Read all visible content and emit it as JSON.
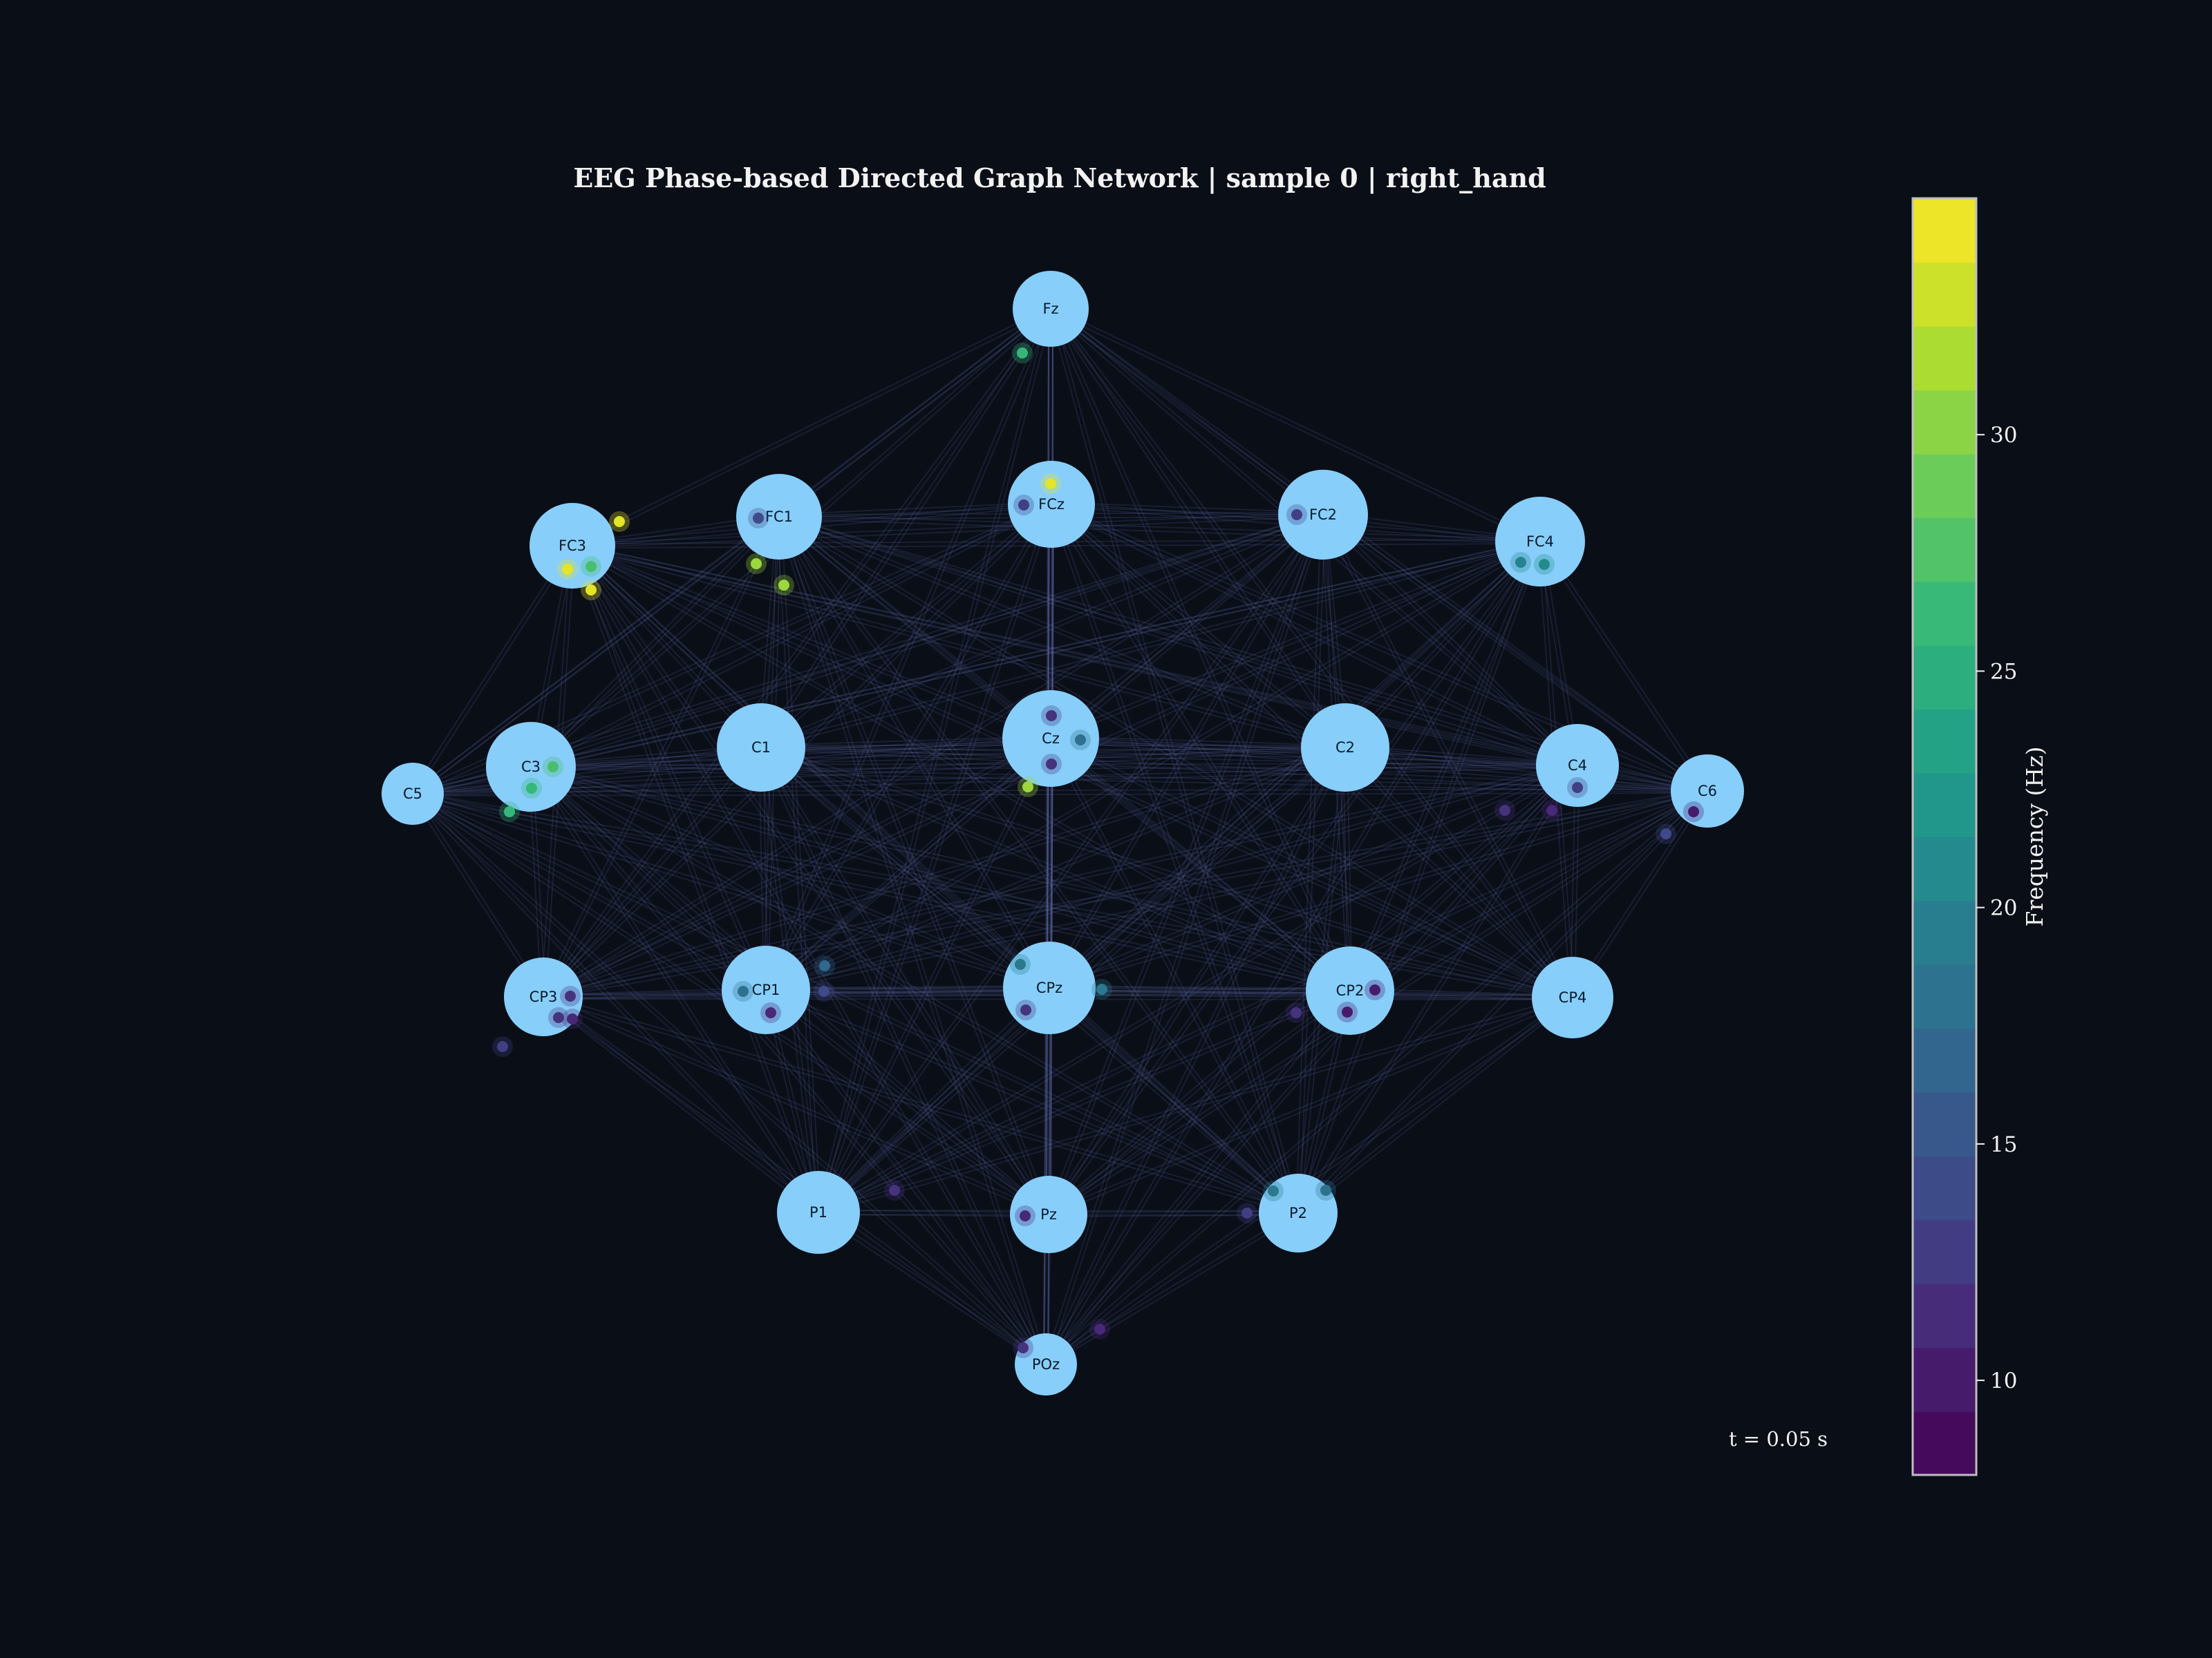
{
  "title": "EEG Phase-based Directed Graph Network | sample 0 | right_hand",
  "time_label": "t = 0.05 s",
  "colorbar": {
    "label": "Frequency (Hz)",
    "min": 8,
    "max": 35,
    "ticks": [
      10,
      15,
      20,
      25,
      30
    ],
    "colormap": "viridis"
  },
  "colors": {
    "background": "#0a0e17",
    "node_fill": "#87cefa",
    "edge": "#6470b4"
  },
  "nodes": [
    "Fz",
    "FC3",
    "FC1",
    "FCz",
    "FC2",
    "FC4",
    "C5",
    "C3",
    "C1",
    "Cz",
    "C2",
    "C4",
    "C6",
    "CP3",
    "CP1",
    "CPz",
    "CP2",
    "CP4",
    "P1",
    "Pz",
    "P2",
    "POz"
  ],
  "particles": [
    {
      "from": "Fz",
      "freq": 26
    },
    {
      "from": "FC3",
      "freq": 34
    },
    {
      "from": "FC3",
      "freq": 34
    },
    {
      "from": "FC3",
      "freq": 27
    },
    {
      "from": "FC3",
      "freq": 34
    },
    {
      "from": "FC1",
      "freq": 14
    },
    {
      "from": "FC1",
      "freq": 31
    },
    {
      "from": "FC1",
      "freq": 31
    },
    {
      "from": "FCz",
      "freq": 34
    },
    {
      "from": "FCz",
      "freq": 13
    },
    {
      "from": "FC2",
      "freq": 13
    },
    {
      "from": "FC4",
      "freq": 20
    },
    {
      "from": "FC4",
      "freq": 21
    },
    {
      "from": "C3",
      "freq": 27
    },
    {
      "from": "C3",
      "freq": 26
    },
    {
      "from": "C3",
      "freq": 26
    },
    {
      "from": "Cz",
      "freq": 12
    },
    {
      "from": "Cz",
      "freq": 18
    },
    {
      "from": "Cz",
      "freq": 12
    },
    {
      "from": "Cz",
      "freq": 31
    },
    {
      "from": "C4",
      "freq": 11
    },
    {
      "from": "C4",
      "freq": 12
    },
    {
      "from": "C4",
      "freq": 13
    },
    {
      "from": "C6",
      "freq": 10
    },
    {
      "from": "C6",
      "freq": 14
    },
    {
      "from": "CP3",
      "freq": 12
    },
    {
      "from": "CP3",
      "freq": 11
    },
    {
      "from": "CP3",
      "freq": 12
    },
    {
      "from": "CP3",
      "freq": 13
    },
    {
      "from": "CP1",
      "freq": 18
    },
    {
      "from": "CP1",
      "freq": 11
    },
    {
      "from": "CP1",
      "freq": 17
    },
    {
      "from": "CP1",
      "freq": 14
    },
    {
      "from": "CPz",
      "freq": 19
    },
    {
      "from": "CPz",
      "freq": 12
    },
    {
      "from": "CPz",
      "freq": 19
    },
    {
      "from": "CP2",
      "freq": 12
    },
    {
      "from": "CP2",
      "freq": 10
    },
    {
      "from": "CP2",
      "freq": 10
    },
    {
      "from": "P1",
      "freq": 12
    },
    {
      "from": "Pz",
      "freq": 11
    },
    {
      "from": "P2",
      "freq": 19
    },
    {
      "from": "P2",
      "freq": 13
    },
    {
      "from": "P2",
      "freq": 18
    },
    {
      "from": "POz",
      "freq": 12
    },
    {
      "from": "POz",
      "freq": 11
    }
  ]
}
